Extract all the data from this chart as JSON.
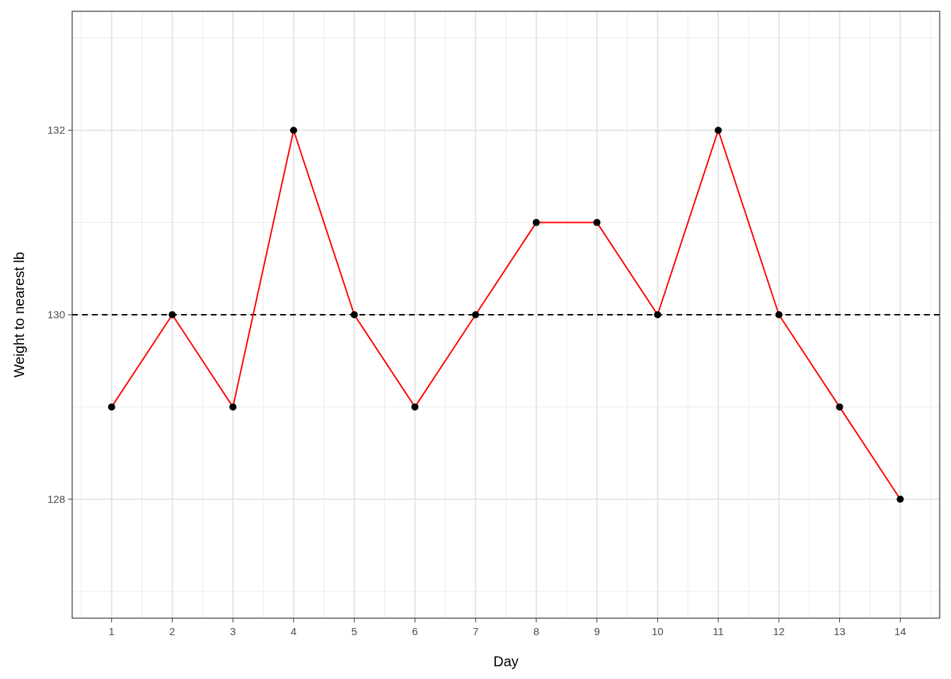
{
  "chart_data": {
    "type": "line",
    "xlabel": "Day",
    "ylabel": "Weight to nearest lb",
    "x": [
      1,
      2,
      3,
      4,
      5,
      6,
      7,
      8,
      9,
      10,
      11,
      12,
      13,
      14
    ],
    "series": [
      {
        "color": "#ff0000",
        "values": [
          129,
          130,
          129,
          132,
          130,
          129,
          130,
          131,
          131,
          130,
          132,
          130,
          129,
          128
        ]
      }
    ],
    "xlim": [
      0.35,
      14.65
    ],
    "xticks": [
      1,
      2,
      3,
      4,
      5,
      6,
      7,
      8,
      9,
      10,
      11,
      12,
      13,
      14
    ],
    "ylim": [
      126.71,
      133.29
    ],
    "yticks": [
      128,
      130,
      132
    ],
    "ref_lines": [
      {
        "axis": "y",
        "value": 130,
        "color": "#000000",
        "line_style": "dashed"
      }
    ],
    "grid": true,
    "marker": "circle",
    "line_style": "solid"
  }
}
